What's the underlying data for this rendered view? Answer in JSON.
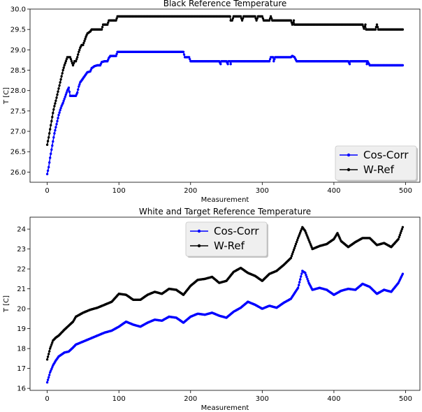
{
  "colors": {
    "cos": "#0000ff",
    "wref": "#000000"
  },
  "chart_data": [
    {
      "type": "line",
      "title": "Black Reference Temperature",
      "xlabel": "Measurement",
      "ylabel": "T [C]",
      "xlim": [
        -24,
        520
      ],
      "ylim": [
        25.75,
        30.0
      ],
      "xticks": [
        0,
        100,
        200,
        300,
        400,
        500
      ],
      "yticks": [
        26.0,
        26.5,
        27.0,
        27.5,
        28.0,
        28.5,
        29.0,
        29.5,
        30.0
      ],
      "grid": false,
      "legend": "bottom-right",
      "marker": "dot",
      "series": [
        {
          "name": "Cos-Corr",
          "color": "#0000ff",
          "points": [
            [
              0,
              25.95
            ],
            [
              2,
              26.12
            ],
            [
              4,
              26.35
            ],
            [
              6,
              26.55
            ],
            [
              8,
              26.75
            ],
            [
              10,
              26.95
            ],
            [
              12,
              27.1
            ],
            [
              14,
              27.25
            ],
            [
              16,
              27.4
            ],
            [
              18,
              27.52
            ],
            [
              20,
              27.62
            ],
            [
              22,
              27.7
            ],
            [
              24,
              27.8
            ],
            [
              26,
              27.9
            ],
            [
              28,
              28.0
            ],
            [
              30,
              28.07
            ],
            [
              32,
              27.87
            ],
            [
              34,
              27.87
            ],
            [
              36,
              27.87
            ],
            [
              38,
              27.87
            ],
            [
              40,
              27.87
            ],
            [
              42,
              27.95
            ],
            [
              44,
              28.1
            ],
            [
              46,
              28.2
            ],
            [
              48,
              28.25
            ],
            [
              50,
              28.3
            ],
            [
              52,
              28.35
            ],
            [
              54,
              28.4
            ],
            [
              56,
              28.45
            ],
            [
              60,
              28.47
            ],
            [
              62,
              28.55
            ],
            [
              66,
              28.6
            ],
            [
              70,
              28.62
            ],
            [
              74,
              28.62
            ],
            [
              76,
              28.7
            ],
            [
              80,
              28.72
            ],
            [
              84,
              28.72
            ],
            [
              86,
              28.8
            ],
            [
              88,
              28.85
            ],
            [
              96,
              28.85
            ],
            [
              98,
              28.95
            ],
            [
              120,
              28.95
            ],
            [
              150,
              28.95
            ],
            [
              180,
              28.95
            ],
            [
              190,
              28.95
            ],
            [
              192,
              28.82
            ],
            [
              198,
              28.82
            ],
            [
              200,
              28.72
            ],
            [
              240,
              28.72
            ],
            [
              242,
              28.65
            ],
            [
              243,
              28.72
            ],
            [
              250,
              28.72
            ],
            [
              252,
              28.65
            ],
            [
              253,
              28.72
            ],
            [
              255,
              28.72
            ],
            [
              256,
              28.65
            ],
            [
              257,
              28.72
            ],
            [
              300,
              28.72
            ],
            [
              310,
              28.72
            ],
            [
              312,
              28.82
            ],
            [
              315,
              28.82
            ],
            [
              316,
              28.72
            ],
            [
              318,
              28.82
            ],
            [
              340,
              28.82
            ],
            [
              342,
              28.85
            ],
            [
              345,
              28.82
            ],
            [
              348,
              28.72
            ],
            [
              420,
              28.72
            ],
            [
              422,
              28.65
            ],
            [
              423,
              28.72
            ],
            [
              440,
              28.72
            ],
            [
              445,
              28.72
            ],
            [
              446,
              28.65
            ],
            [
              447,
              28.72
            ],
            [
              450,
              28.62
            ],
            [
              496,
              28.62
            ]
          ]
        },
        {
          "name": "W-Ref",
          "color": "#000000",
          "points": [
            [
              0,
              26.67
            ],
            [
              2,
              26.85
            ],
            [
              4,
              27.05
            ],
            [
              6,
              27.25
            ],
            [
              8,
              27.45
            ],
            [
              10,
              27.62
            ],
            [
              12,
              27.75
            ],
            [
              14,
              27.9
            ],
            [
              16,
              28.05
            ],
            [
              18,
              28.2
            ],
            [
              20,
              28.35
            ],
            [
              22,
              28.5
            ],
            [
              24,
              28.62
            ],
            [
              26,
              28.72
            ],
            [
              28,
              28.82
            ],
            [
              30,
              28.82
            ],
            [
              32,
              28.82
            ],
            [
              34,
              28.72
            ],
            [
              36,
              28.62
            ],
            [
              38,
              28.72
            ],
            [
              40,
              28.72
            ],
            [
              42,
              28.82
            ],
            [
              44,
              28.95
            ],
            [
              46,
              29.05
            ],
            [
              48,
              29.12
            ],
            [
              50,
              29.12
            ],
            [
              52,
              29.22
            ],
            [
              54,
              29.32
            ],
            [
              56,
              29.4
            ],
            [
              60,
              29.45
            ],
            [
              62,
              29.5
            ],
            [
              76,
              29.5
            ],
            [
              78,
              29.62
            ],
            [
              84,
              29.62
            ],
            [
              86,
              29.72
            ],
            [
              96,
              29.72
            ],
            [
              98,
              29.82
            ],
            [
              150,
              29.82
            ],
            [
              200,
              29.82
            ],
            [
              250,
              29.82
            ],
            [
              255,
              29.82
            ],
            [
              256,
              29.72
            ],
            [
              258,
              29.72
            ],
            [
              260,
              29.82
            ],
            [
              270,
              29.82
            ],
            [
              272,
              29.72
            ],
            [
              274,
              29.82
            ],
            [
              290,
              29.82
            ],
            [
              292,
              29.72
            ],
            [
              294,
              29.82
            ],
            [
              300,
              29.82
            ],
            [
              302,
              29.72
            ],
            [
              310,
              29.72
            ],
            [
              312,
              29.82
            ],
            [
              314,
              29.72
            ],
            [
              340,
              29.72
            ],
            [
              342,
              29.62
            ],
            [
              344,
              29.72
            ],
            [
              345,
              29.62
            ],
            [
              400,
              29.62
            ],
            [
              440,
              29.62
            ],
            [
              442,
              29.52
            ],
            [
              444,
              29.62
            ],
            [
              445,
              29.5
            ],
            [
              458,
              29.5
            ],
            [
              460,
              29.62
            ],
            [
              462,
              29.5
            ],
            [
              496,
              29.5
            ]
          ]
        }
      ]
    },
    {
      "type": "line",
      "title": "White and Target Reference Temperature",
      "xlabel": "Measurement",
      "ylabel": "T [C]",
      "xlim": [
        -24,
        520
      ],
      "ylim": [
        15.9,
        24.6
      ],
      "xticks": [
        0,
        100,
        200,
        300,
        400,
        500
      ],
      "yticks": [
        16,
        17,
        18,
        19,
        20,
        21,
        22,
        23,
        24
      ],
      "grid": false,
      "legend": "top-center",
      "marker": "dot",
      "series": [
        {
          "name": "Cos-Corr",
          "color": "#0000ff",
          "points": [
            [
              0,
              16.3
            ],
            [
              4,
              16.8
            ],
            [
              8,
              17.15
            ],
            [
              12,
              17.4
            ],
            [
              16,
              17.6
            ],
            [
              20,
              17.7
            ],
            [
              24,
              17.8
            ],
            [
              30,
              17.85
            ],
            [
              36,
              18.05
            ],
            [
              40,
              18.2
            ],
            [
              50,
              18.35
            ],
            [
              60,
              18.5
            ],
            [
              70,
              18.65
            ],
            [
              80,
              18.8
            ],
            [
              90,
              18.9
            ],
            [
              100,
              19.1
            ],
            [
              110,
              19.35
            ],
            [
              120,
              19.2
            ],
            [
              130,
              19.1
            ],
            [
              140,
              19.3
            ],
            [
              150,
              19.45
            ],
            [
              160,
              19.4
            ],
            [
              170,
              19.6
            ],
            [
              180,
              19.55
            ],
            [
              190,
              19.3
            ],
            [
              200,
              19.6
            ],
            [
              210,
              19.75
            ],
            [
              220,
              19.7
            ],
            [
              230,
              19.8
            ],
            [
              240,
              19.65
            ],
            [
              250,
              19.55
            ],
            [
              260,
              19.85
            ],
            [
              270,
              20.05
            ],
            [
              280,
              20.35
            ],
            [
              290,
              20.2
            ],
            [
              300,
              20.0
            ],
            [
              310,
              20.15
            ],
            [
              320,
              20.05
            ],
            [
              330,
              20.3
            ],
            [
              340,
              20.5
            ],
            [
              350,
              21.05
            ],
            [
              356,
              21.9
            ],
            [
              360,
              21.8
            ],
            [
              365,
              21.3
            ],
            [
              370,
              20.95
            ],
            [
              380,
              21.05
            ],
            [
              390,
              20.95
            ],
            [
              400,
              20.7
            ],
            [
              410,
              20.9
            ],
            [
              420,
              21.0
            ],
            [
              430,
              20.95
            ],
            [
              440,
              21.25
            ],
            [
              450,
              21.1
            ],
            [
              460,
              20.75
            ],
            [
              470,
              20.95
            ],
            [
              480,
              20.85
            ],
            [
              490,
              21.3
            ],
            [
              496,
              21.75
            ]
          ]
        },
        {
          "name": "W-Ref",
          "color": "#000000",
          "points": [
            [
              0,
              17.45
            ],
            [
              4,
              18.0
            ],
            [
              8,
              18.4
            ],
            [
              12,
              18.55
            ],
            [
              16,
              18.65
            ],
            [
              20,
              18.8
            ],
            [
              24,
              18.95
            ],
            [
              30,
              19.15
            ],
            [
              36,
              19.35
            ],
            [
              40,
              19.6
            ],
            [
              50,
              19.8
            ],
            [
              60,
              19.95
            ],
            [
              70,
              20.05
            ],
            [
              80,
              20.2
            ],
            [
              90,
              20.35
            ],
            [
              100,
              20.75
            ],
            [
              110,
              20.7
            ],
            [
              120,
              20.45
            ],
            [
              130,
              20.45
            ],
            [
              140,
              20.7
            ],
            [
              150,
              20.85
            ],
            [
              160,
              20.75
            ],
            [
              170,
              21.0
            ],
            [
              180,
              20.95
            ],
            [
              190,
              20.7
            ],
            [
              200,
              21.15
            ],
            [
              210,
              21.45
            ],
            [
              220,
              21.5
            ],
            [
              230,
              21.6
            ],
            [
              240,
              21.3
            ],
            [
              250,
              21.4
            ],
            [
              260,
              21.85
            ],
            [
              270,
              22.05
            ],
            [
              280,
              21.8
            ],
            [
              290,
              21.65
            ],
            [
              300,
              21.4
            ],
            [
              310,
              21.75
            ],
            [
              320,
              21.9
            ],
            [
              330,
              22.2
            ],
            [
              340,
              22.55
            ],
            [
              350,
              23.55
            ],
            [
              356,
              24.1
            ],
            [
              360,
              23.9
            ],
            [
              365,
              23.45
            ],
            [
              370,
              23.0
            ],
            [
              380,
              23.15
            ],
            [
              390,
              23.25
            ],
            [
              400,
              23.5
            ],
            [
              405,
              23.8
            ],
            [
              410,
              23.4
            ],
            [
              420,
              23.1
            ],
            [
              430,
              23.35
            ],
            [
              440,
              23.55
            ],
            [
              450,
              23.55
            ],
            [
              460,
              23.2
            ],
            [
              470,
              23.3
            ],
            [
              480,
              23.1
            ],
            [
              490,
              23.5
            ],
            [
              496,
              24.1
            ]
          ]
        }
      ]
    }
  ]
}
